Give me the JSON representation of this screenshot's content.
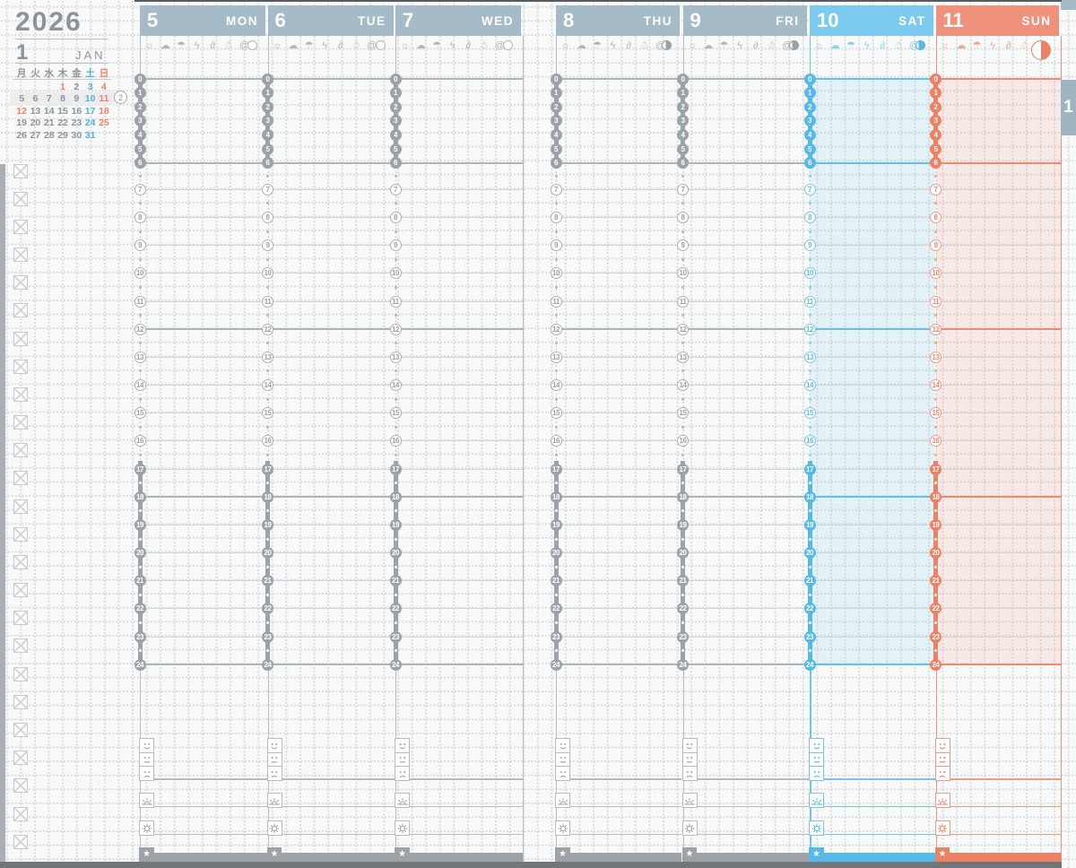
{
  "calendar": {
    "year": "2026",
    "month": "1",
    "month_abbr": "JAN",
    "weekdays": [
      {
        "label": "月",
        "type": "wd"
      },
      {
        "label": "火",
        "type": "wd"
      },
      {
        "label": "水",
        "type": "wd"
      },
      {
        "label": "木",
        "type": "wd"
      },
      {
        "label": "金",
        "type": "wd"
      },
      {
        "label": "土",
        "type": "sat"
      },
      {
        "label": "日",
        "type": "sun"
      }
    ],
    "weeks": [
      {
        "highlight": false,
        "week_no": "",
        "days": [
          {
            "d": "",
            "type": "wd"
          },
          {
            "d": "",
            "type": "wd"
          },
          {
            "d": "",
            "type": "wd"
          },
          {
            "d": "1",
            "type": "hol"
          },
          {
            "d": "2",
            "type": "wd"
          },
          {
            "d": "3",
            "type": "sat"
          },
          {
            "d": "4",
            "type": "sun"
          }
        ]
      },
      {
        "highlight": true,
        "week_no": "2",
        "days": [
          {
            "d": "5",
            "type": "wd"
          },
          {
            "d": "6",
            "type": "wd"
          },
          {
            "d": "7",
            "type": "wd"
          },
          {
            "d": "8",
            "type": "wd"
          },
          {
            "d": "9",
            "type": "wd"
          },
          {
            "d": "10",
            "type": "sat"
          },
          {
            "d": "11",
            "type": "sun"
          }
        ]
      },
      {
        "highlight": false,
        "week_no": "",
        "days": [
          {
            "d": "12",
            "type": "hol"
          },
          {
            "d": "13",
            "type": "wd"
          },
          {
            "d": "14",
            "type": "wd"
          },
          {
            "d": "15",
            "type": "wd"
          },
          {
            "d": "16",
            "type": "wd"
          },
          {
            "d": "17",
            "type": "sat"
          },
          {
            "d": "18",
            "type": "sun"
          }
        ]
      },
      {
        "highlight": false,
        "week_no": "",
        "days": [
          {
            "d": "19",
            "type": "wd"
          },
          {
            "d": "20",
            "type": "wd"
          },
          {
            "d": "21",
            "type": "wd"
          },
          {
            "d": "22",
            "type": "wd"
          },
          {
            "d": "23",
            "type": "wd"
          },
          {
            "d": "24",
            "type": "sat"
          },
          {
            "d": "25",
            "type": "sun"
          }
        ]
      },
      {
        "highlight": false,
        "week_no": "",
        "days": [
          {
            "d": "26",
            "type": "wd"
          },
          {
            "d": "27",
            "type": "wd"
          },
          {
            "d": "28",
            "type": "wd"
          },
          {
            "d": "29",
            "type": "wd"
          },
          {
            "d": "30",
            "type": "wd"
          },
          {
            "d": "31",
            "type": "sat"
          },
          {
            "d": "",
            "type": "wd"
          }
        ]
      }
    ]
  },
  "todo_column": {
    "checkbox_count": 25,
    "style": "crossed-box"
  },
  "week": {
    "days": [
      {
        "date": "5",
        "weekday": "MON",
        "theme": "gray",
        "moon": {
          "shape": "empty",
          "fill_pct": 0
        }
      },
      {
        "date": "6",
        "weekday": "TUE",
        "theme": "gray",
        "moon": {
          "shape": "empty",
          "fill_pct": 0
        }
      },
      {
        "date": "7",
        "weekday": "WED",
        "theme": "gray",
        "moon": {
          "shape": "empty",
          "fill_pct": 0
        }
      },
      {
        "date": "8",
        "weekday": "THU",
        "theme": "gray",
        "moon": {
          "shape": "gibbous",
          "fill_pct": 62
        }
      },
      {
        "date": "9",
        "weekday": "FRI",
        "theme": "gray",
        "moon": {
          "shape": "gibbous",
          "fill_pct": 70
        }
      },
      {
        "date": "10",
        "weekday": "SAT",
        "theme": "blue",
        "moon": {
          "shape": "gibbous",
          "fill_pct": 72
        }
      },
      {
        "date": "11",
        "weekday": "SUN",
        "theme": "salmon",
        "moon": {
          "shape": "half-large",
          "fill_pct": 50
        }
      }
    ],
    "weather_icons": [
      {
        "name": "sun-icon",
        "glyph": "☼"
      },
      {
        "name": "cloud-icon",
        "glyph": "☁"
      },
      {
        "name": "umbrella-icon",
        "glyph": "☂"
      },
      {
        "name": "thunder-icon",
        "glyph": "ϟ"
      },
      {
        "name": "wind-icon",
        "glyph": "∂"
      },
      {
        "name": "snow-icon",
        "glyph": "☃"
      },
      {
        "name": "typhoon-icon",
        "glyph": "@"
      }
    ],
    "time_ruler": {
      "hours": [
        0,
        1,
        2,
        3,
        4,
        5,
        6,
        7,
        8,
        9,
        10,
        11,
        12,
        13,
        14,
        15,
        16,
        17,
        18,
        19,
        20,
        21,
        22,
        23,
        24
      ],
      "filled_night_morning": [
        0,
        6
      ],
      "filled_night_evening": [
        17,
        24
      ],
      "thick_line_hours": [
        0,
        6,
        12,
        18,
        24
      ]
    },
    "bottom_rows": {
      "mood_boxes": [
        "good-mood",
        "neutral-mood",
        "bad-mood"
      ],
      "icon_rows": [
        "sunrise",
        "sun"
      ],
      "footer_icon": "star",
      "star_glyph": "★"
    }
  },
  "side_tab": {
    "label": "1"
  },
  "colors": {
    "header_gray": "#a6bbc8",
    "header_sat": "#7ccaf0",
    "header_sun": "#f0917b",
    "accent_sat_strong": "#55b9e9",
    "accent_sun_strong": "#ee8063",
    "text_gray": "#8d9499",
    "cal_sat_blue": "#55ade0",
    "cal_sun_red": "#ef8266",
    "ruler_gray": "#9ba3a9",
    "tab_bg": "#9fb4c1"
  }
}
